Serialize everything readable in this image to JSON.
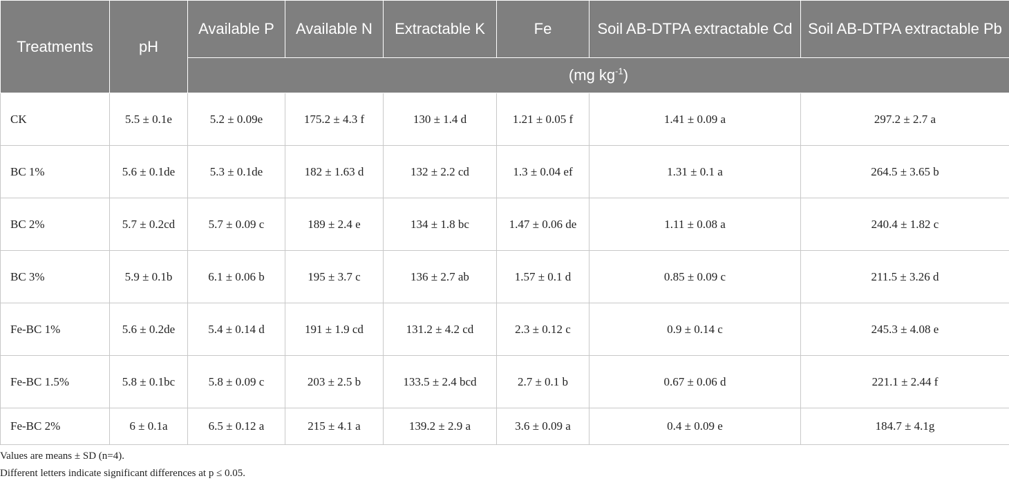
{
  "table": {
    "headers": [
      "Treatments",
      "pH",
      "Available P",
      "Available N",
      "Extractable K",
      "Fe",
      "Soil AB-DTPA extractable Cd",
      "Soil AB-DTPA extractable Pb"
    ],
    "unit_base": "(mg kg",
    "unit_exp": "-1",
    "unit_close": ")",
    "rows": [
      [
        "CK",
        "5.5 ± 0.1e",
        "5.2 ± 0.09e",
        "175.2 ± 4.3 f",
        "130 ± 1.4 d",
        "1.21 ± 0.05 f",
        "1.41 ± 0.09 a",
        "297.2 ± 2.7 a"
      ],
      [
        "BC 1%",
        "5.6 ± 0.1de",
        "5.3 ± 0.1de",
        "182 ± 1.63 d",
        "132 ± 2.2 cd",
        "1.3 ± 0.04 ef",
        "1.31 ± 0.1 a",
        "264.5 ± 3.65 b"
      ],
      [
        "BC 2%",
        "5.7 ± 0.2cd",
        "5.7 ± 0.09 c",
        "189 ± 2.4 e",
        "134 ± 1.8 bc",
        "1.47 ± 0.06 de",
        "1.11 ± 0.08 a",
        "240.4 ± 1.82 c"
      ],
      [
        "BC 3%",
        "5.9 ± 0.1b",
        "6.1 ± 0.06 b",
        "195 ± 3.7 c",
        "136 ± 2.7 ab",
        "1.57 ± 0.1 d",
        "0.85 ± 0.09 c",
        "211.5 ± 3.26 d"
      ],
      [
        "Fe-BC 1%",
        "5.6 ± 0.2de",
        "5.4 ± 0.14 d",
        "191 ± 1.9 cd",
        "131.2 ± 4.2 cd",
        "2.3 ± 0.12 c",
        "0.9 ± 0.14 c",
        "245.3 ± 4.08 e"
      ],
      [
        "Fe-BC 1.5%",
        "5.8 ± 0.1bc",
        "5.8 ± 0.09 c",
        "203 ± 2.5 b",
        "133.5 ± 2.4 bcd",
        "2.7 ± 0.1 b",
        "0.67 ± 0.06 d",
        "221.1 ± 2.44 f"
      ],
      [
        "Fe-BC 2%",
        "6 ± 0.1a",
        "6.5 ± 0.12 a",
        "215 ± 4.1 a",
        "139.2 ± 2.9 a",
        "3.6 ± 0.09 a",
        "0.4 ± 0.09 e",
        "184.7 ± 4.1g"
      ]
    ]
  },
  "notes": [
    "Values are means ± SD (n=4).",
    "Different letters indicate significant differences at p ≤ 0.05."
  ]
}
